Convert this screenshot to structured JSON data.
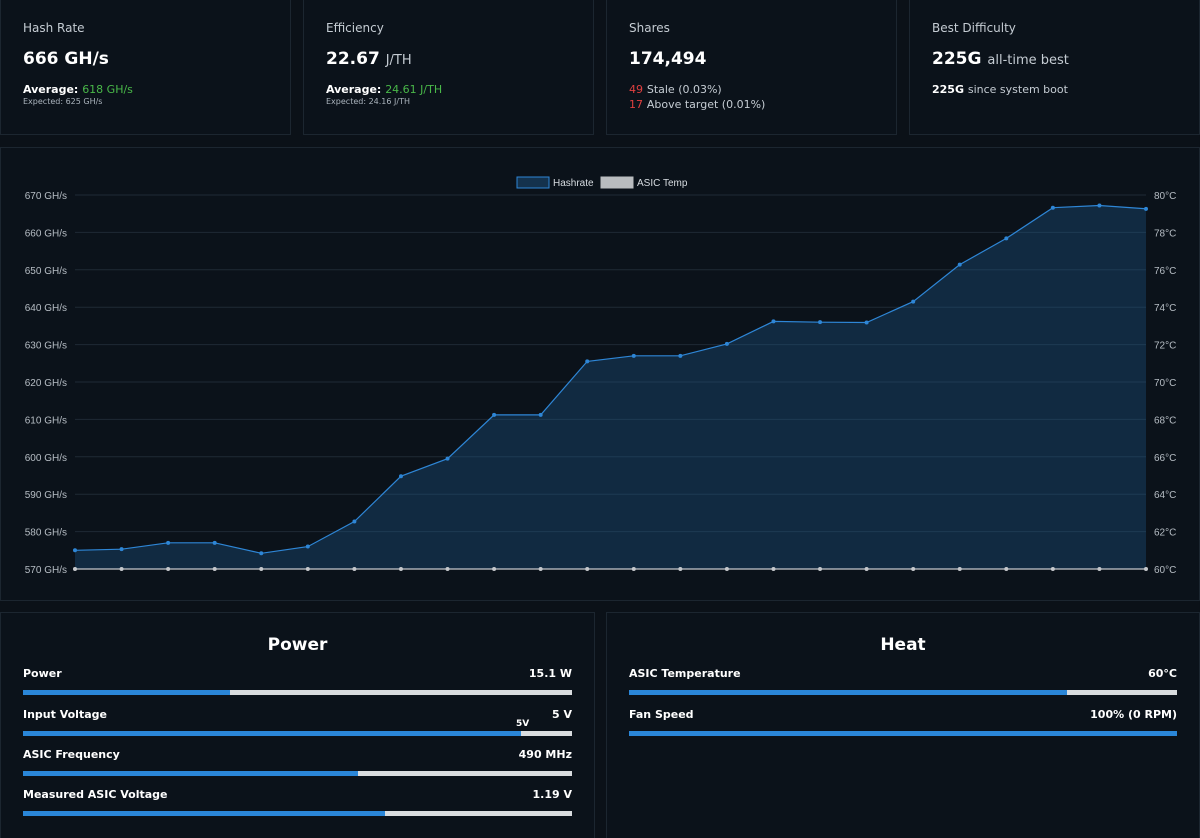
{
  "stats": {
    "hashrate": {
      "title": "Hash Rate",
      "value": "666 GH/s",
      "avg_label": "Average:",
      "avg_value": "618 GH/s",
      "expected": "Expected: 625 GH/s"
    },
    "efficiency": {
      "title": "Efficiency",
      "value": "22.67",
      "unit": "J/TH",
      "avg_label": "Average:",
      "avg_value": "24.61 J/TH",
      "expected": "Expected: 24.16 J/TH"
    },
    "shares": {
      "title": "Shares",
      "value": "174,494",
      "stale_count": "49",
      "stale_text": "Stale (0.03%)",
      "above_count": "17",
      "above_text": "Above target (0.01%)"
    },
    "difficulty": {
      "title": "Best Difficulty",
      "value": "225G",
      "value_suffix": "all-time best",
      "boot_value": "225G",
      "boot_suffix": "since system boot"
    }
  },
  "chart_data": {
    "type": "line",
    "legend": [
      "Hashrate",
      "ASIC Temp"
    ],
    "legend_position": "top-center",
    "y_left_ticks": [
      "670 GH/s",
      "660 GH/s",
      "650 GH/s",
      "640 GH/s",
      "630 GH/s",
      "620 GH/s",
      "610 GH/s",
      "600 GH/s",
      "590 GH/s",
      "580 GH/s",
      "570 GH/s"
    ],
    "y_right_ticks": [
      "80°C",
      "78°C",
      "76°C",
      "74°C",
      "72°C",
      "70°C",
      "68°C",
      "66°C",
      "64°C",
      "62°C",
      "60°C"
    ],
    "ylim_left": [
      570,
      670
    ],
    "ylim_right": [
      60,
      80
    ],
    "grid": true,
    "series": [
      {
        "name": "Hashrate",
        "color": "#2e86d6",
        "fill": "rgba(30,90,140,0.35)",
        "values": [
          575,
          575.3,
          577,
          577,
          574.2,
          576,
          582.7,
          594.8,
          599.5,
          611.2,
          611.2,
          625.5,
          627,
          627,
          630.2,
          636.2,
          636,
          635.9,
          641.5,
          651.4,
          658.4,
          666.6,
          667.2,
          666.3
        ]
      },
      {
        "name": "ASIC Temp",
        "color": "#c5c8cc",
        "values": [
          60,
          60,
          60,
          60,
          60,
          60,
          60,
          60,
          60,
          60,
          60,
          60,
          60,
          60,
          60,
          60,
          60,
          60,
          60,
          60,
          60,
          60,
          60,
          60
        ]
      }
    ]
  },
  "power": {
    "title": "Power",
    "metrics": [
      {
        "label": "Power",
        "value": "15.1 W",
        "fraction": 0.377
      },
      {
        "label": "Input Voltage",
        "value": "5 V",
        "fraction": 0.907,
        "marker": "5V"
      },
      {
        "label": "ASIC Frequency",
        "value": "490 MHz",
        "fraction": 0.61
      },
      {
        "label": "Measured ASIC Voltage",
        "value": "1.19 V",
        "fraction": 0.66
      }
    ]
  },
  "heat": {
    "title": "Heat",
    "metrics": [
      {
        "label": "ASIC Temperature",
        "value": "60°C",
        "fraction": 0.8
      },
      {
        "label": "Fan Speed",
        "value": "100% (0 RPM)",
        "fraction": 1.0
      }
    ]
  },
  "colors": {
    "accent": "#2a86d8",
    "green": "#49b849",
    "red": "#e14040",
    "background": "#0b1118"
  }
}
